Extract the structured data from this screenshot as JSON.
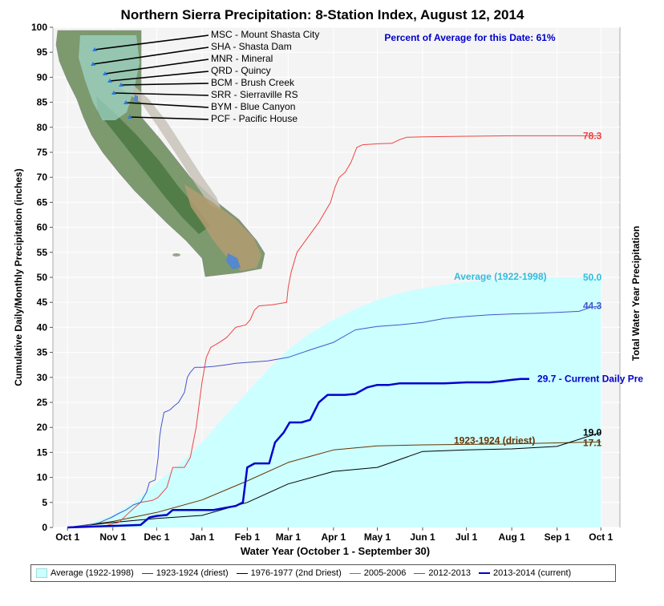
{
  "chart_data": {
    "type": "area",
    "title": "Northern Sierra Precipitation: 8-Station Index, August 12, 2014",
    "subtitle": "Percent of Average for this Date: 61%",
    "xlabel": "Water Year (October 1 - September 30)",
    "ylabel": "Cumulative Daily/Monthly Precipitation (inches)",
    "y2label": "Total Water Year Precipitation",
    "ylim": [
      0,
      100
    ],
    "yticks": [
      0,
      5,
      10,
      15,
      20,
      25,
      30,
      35,
      40,
      45,
      50,
      55,
      60,
      65,
      70,
      75,
      80,
      85,
      90,
      95,
      100
    ],
    "xlim_days": [
      -10,
      378
    ],
    "month_ticks": [
      {
        "label": "Oct 1",
        "day": 0
      },
      {
        "label": "Nov 1",
        "day": 31
      },
      {
        "label": "Dec 1",
        "day": 61
      },
      {
        "label": "Jan 1",
        "day": 92
      },
      {
        "label": "Feb 1",
        "day": 123
      },
      {
        "label": "Mar 1",
        "day": 151
      },
      {
        "label": "Apr 1",
        "day": 182
      },
      {
        "label": "May 1",
        "day": 212
      },
      {
        "label": "Jun 1",
        "day": 243
      },
      {
        "label": "Jul 1",
        "day": 273
      },
      {
        "label": "Aug 1",
        "day": 304
      },
      {
        "label": "Sep 1",
        "day": 335
      },
      {
        "label": "Oct 1",
        "day": 365
      }
    ],
    "grid": true,
    "legend_position": "bottom",
    "series": [
      {
        "name": "Average (1922-1998)",
        "kind": "area",
        "color": "#ccffff",
        "end_label": "50.0",
        "end_label_color": "#33bbdd",
        "inline_label": "Average (1922-1998)",
        "inline_label_color": "#33bbdd",
        "points": [
          [
            0,
            0
          ],
          [
            15,
            0.8
          ],
          [
            31,
            2.5
          ],
          [
            45,
            5
          ],
          [
            61,
            9
          ],
          [
            76,
            12.5
          ],
          [
            92,
            17
          ],
          [
            107,
            22
          ],
          [
            123,
            27
          ],
          [
            137,
            31.5
          ],
          [
            151,
            35.5
          ],
          [
            166,
            38.8
          ],
          [
            182,
            41.5
          ],
          [
            197,
            43.7
          ],
          [
            212,
            45.5
          ],
          [
            227,
            46.8
          ],
          [
            243,
            47.8
          ],
          [
            258,
            48.5
          ],
          [
            273,
            49.1
          ],
          [
            289,
            49.5
          ],
          [
            304,
            49.8
          ],
          [
            335,
            50
          ],
          [
            365,
            50
          ]
        ]
      },
      {
        "name": "1923-1924 (driest)",
        "kind": "line",
        "color": "#663300",
        "width": 1,
        "end_label": "17.1",
        "end_label_color": "#663300",
        "inline_label": "1923-1924 (driest)",
        "inline_label_color": "#663300",
        "points": [
          [
            0,
            0
          ],
          [
            31,
            1.2
          ],
          [
            61,
            3
          ],
          [
            92,
            5.5
          ],
          [
            123,
            9.3
          ],
          [
            151,
            13
          ],
          [
            182,
            15.5
          ],
          [
            212,
            16.3
          ],
          [
            243,
            16.5
          ],
          [
            273,
            16.6
          ],
          [
            304,
            16.7
          ],
          [
            335,
            16.9
          ],
          [
            365,
            17.1
          ]
        ]
      },
      {
        "name": "1976-1977 (2nd Driest)",
        "kind": "line",
        "color": "#000000",
        "width": 1,
        "end_label": "19.0",
        "end_label_color": "#000000",
        "points": [
          [
            0,
            0
          ],
          [
            31,
            1
          ],
          [
            61,
            1.8
          ],
          [
            92,
            2.4
          ],
          [
            123,
            5
          ],
          [
            151,
            8.7
          ],
          [
            182,
            11.2
          ],
          [
            212,
            12
          ],
          [
            243,
            15.2
          ],
          [
            273,
            15.5
          ],
          [
            304,
            15.7
          ],
          [
            335,
            16.2
          ],
          [
            365,
            19
          ]
        ]
      },
      {
        "name": "2005-2006",
        "kind": "line",
        "color": "#ee4444",
        "width": 1,
        "end_label": "78.3",
        "end_label_color": "#ee4444",
        "points": [
          [
            0,
            0
          ],
          [
            25,
            0.3
          ],
          [
            35,
            1
          ],
          [
            44,
            3.5
          ],
          [
            50,
            5
          ],
          [
            58,
            5.4
          ],
          [
            62,
            6
          ],
          [
            68,
            8
          ],
          [
            72,
            12
          ],
          [
            80,
            12
          ],
          [
            84,
            14
          ],
          [
            88,
            20
          ],
          [
            92,
            29
          ],
          [
            95,
            34
          ],
          [
            98,
            36
          ],
          [
            104,
            37
          ],
          [
            109,
            38
          ],
          [
            115,
            40
          ],
          [
            122,
            40.5
          ],
          [
            125,
            41.5
          ],
          [
            128,
            43.5
          ],
          [
            131,
            44.3
          ],
          [
            140,
            44.5
          ],
          [
            146,
            44.8
          ],
          [
            150,
            45
          ],
          [
            151,
            48
          ],
          [
            153,
            51
          ],
          [
            157,
            55
          ],
          [
            162,
            57
          ],
          [
            167,
            59
          ],
          [
            172,
            61
          ],
          [
            176,
            63
          ],
          [
            180,
            65
          ],
          [
            183,
            68
          ],
          [
            186,
            70
          ],
          [
            190,
            71
          ],
          [
            194,
            73
          ],
          [
            198,
            76
          ],
          [
            202,
            76.5
          ],
          [
            212,
            76.7
          ],
          [
            222,
            76.8
          ],
          [
            227,
            77.5
          ],
          [
            232,
            78
          ],
          [
            243,
            78.1
          ],
          [
            273,
            78.2
          ],
          [
            304,
            78.3
          ],
          [
            365,
            78.3
          ]
        ]
      },
      {
        "name": "2012-2013",
        "kind": "line",
        "color": "#4455cc",
        "width": 1,
        "end_label": "44.3",
        "end_label_color": "#4455cc",
        "points": [
          [
            0,
            0
          ],
          [
            15,
            0.5
          ],
          [
            22,
            1
          ],
          [
            30,
            2
          ],
          [
            35,
            2.8
          ],
          [
            40,
            3.5
          ],
          [
            45,
            4.5
          ],
          [
            50,
            5
          ],
          [
            54,
            7
          ],
          [
            56,
            9
          ],
          [
            60,
            9.5
          ],
          [
            62,
            14
          ],
          [
            63,
            18
          ],
          [
            64,
            20
          ],
          [
            66,
            23
          ],
          [
            70,
            23.5
          ],
          [
            73,
            24.3
          ],
          [
            76,
            25
          ],
          [
            80,
            27
          ],
          [
            82,
            30
          ],
          [
            84,
            31
          ],
          [
            87,
            32
          ],
          [
            92,
            32
          ],
          [
            100,
            32.2
          ],
          [
            108,
            32.5
          ],
          [
            115,
            32.8
          ],
          [
            123,
            33
          ],
          [
            137,
            33.3
          ],
          [
            151,
            34
          ],
          [
            166,
            35.5
          ],
          [
            182,
            37
          ],
          [
            197,
            39.5
          ],
          [
            212,
            40.2
          ],
          [
            227,
            40.5
          ],
          [
            243,
            41
          ],
          [
            258,
            41.8
          ],
          [
            273,
            42.2
          ],
          [
            289,
            42.5
          ],
          [
            304,
            42.7
          ],
          [
            320,
            42.8
          ],
          [
            335,
            43
          ],
          [
            350,
            43.2
          ],
          [
            358,
            44
          ],
          [
            365,
            44.3
          ]
        ]
      },
      {
        "name": "2013-2014 (current)",
        "kind": "line",
        "color": "#0000cc",
        "width": 2.5,
        "end_label": "29.7 -  Current Daily Pre",
        "end_label_color": "#0000cc",
        "points": [
          [
            0,
            0
          ],
          [
            31,
            0.3
          ],
          [
            50,
            0.5
          ],
          [
            56,
            2
          ],
          [
            61,
            2.3
          ],
          [
            68,
            2.5
          ],
          [
            72,
            3.5
          ],
          [
            85,
            3.5
          ],
          [
            100,
            3.5
          ],
          [
            115,
            4.3
          ],
          [
            120,
            5
          ],
          [
            123,
            12
          ],
          [
            128,
            12.8
          ],
          [
            138,
            12.8
          ],
          [
            142,
            17
          ],
          [
            148,
            19
          ],
          [
            152,
            21
          ],
          [
            160,
            21
          ],
          [
            166,
            21.5
          ],
          [
            172,
            25
          ],
          [
            178,
            26.5
          ],
          [
            190,
            26.5
          ],
          [
            197,
            26.7
          ],
          [
            205,
            28
          ],
          [
            212,
            28.5
          ],
          [
            220,
            28.5
          ],
          [
            227,
            28.8
          ],
          [
            243,
            28.8
          ],
          [
            258,
            28.8
          ],
          [
            273,
            29
          ],
          [
            289,
            29
          ],
          [
            298,
            29.3
          ],
          [
            304,
            29.5
          ],
          [
            310,
            29.7
          ],
          [
            316,
            29.7
          ]
        ]
      }
    ]
  },
  "annotations": {
    "percent_of_average": "Percent of Average for this Date: 61%"
  },
  "map": {
    "stations": [
      {
        "code": "MSC",
        "label": "MSC - Mount Shasta City"
      },
      {
        "code": "SHA",
        "label": "SHA - Shasta Dam"
      },
      {
        "code": "MNR",
        "label": "MNR - Mineral"
      },
      {
        "code": "QRD",
        "label": "QRD - Quincy"
      },
      {
        "code": "BCM",
        "label": "BCM - Brush Creek"
      },
      {
        "code": "SRR",
        "label": "SRR - Sierraville RS"
      },
      {
        "code": "BYM",
        "label": "BYM - Blue Canyon"
      },
      {
        "code": "PCF",
        "label": "PCF - Pacific House"
      }
    ]
  },
  "legend": [
    {
      "label": "Average (1922-1998)",
      "kind": "area",
      "color": "#ccffff"
    },
    {
      "label": "1923-1924 (driest)",
      "kind": "line",
      "color": "#663300"
    },
    {
      "label": "1976-1977 (2nd Driest)",
      "kind": "line",
      "color": "#000000"
    },
    {
      "label": "2005-2006",
      "kind": "line",
      "color": "#ee4444"
    },
    {
      "label": "2012-2013",
      "kind": "line",
      "color": "#4455cc"
    },
    {
      "label": "2013-2014 (current)",
      "kind": "line",
      "color": "#0000cc"
    }
  ]
}
